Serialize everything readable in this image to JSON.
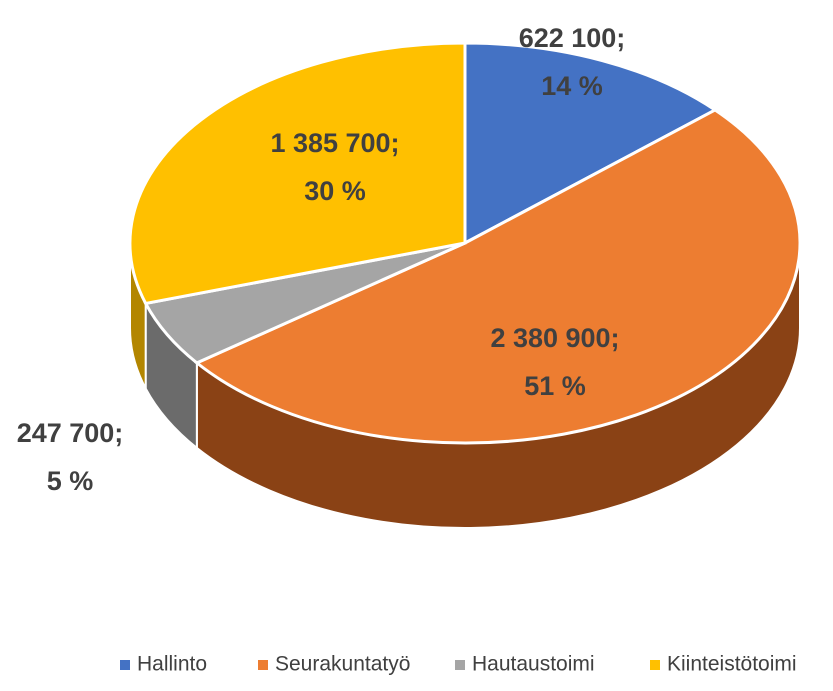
{
  "chart_data": {
    "type": "pie",
    "categories": [
      "Hallinto",
      "Seurakuntatyö",
      "Hautaustoimi",
      "Kiinteistötoimi"
    ],
    "values": [
      622100,
      2380900,
      247700,
      1385700
    ],
    "value_labels": [
      "622 100;",
      "2 380 900;",
      "247 700;",
      "1 385 700;"
    ],
    "percents": [
      14,
      51,
      5,
      30
    ],
    "percent_labels": [
      "14 %",
      "51 %",
      "5 %",
      "30 %"
    ],
    "colors": [
      "#4472c4",
      "#ed7d31",
      "#a5a5a5",
      "#ffc000"
    ],
    "side_colors": [
      "#2f528f",
      "#8a4215",
      "#6b6b6b",
      "#b38600"
    ],
    "legend": "bottom"
  }
}
